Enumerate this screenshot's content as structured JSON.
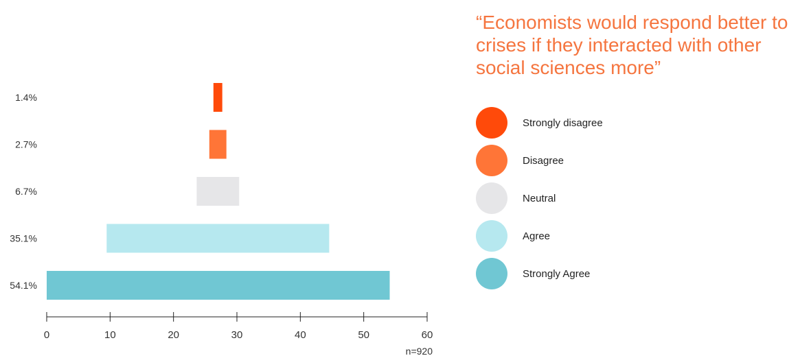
{
  "chart_data": {
    "type": "bar",
    "orientation": "horizontal",
    "layout": "centered",
    "title": "“Economists would respond better to crises if they interacted with other social sciences more”",
    "categories": [
      "Strongly disagree",
      "Disagree",
      "Neutral",
      "Agree",
      "Strongly Agree"
    ],
    "values": [
      1.4,
      2.7,
      6.7,
      35.1,
      54.1
    ],
    "value_labels": [
      "1.4%",
      "2.7%",
      "6.7%",
      "35.1%",
      "54.1%"
    ],
    "colors": [
      "#ff4a0a",
      "#ff7537",
      "#e6e6e8",
      "#b6e8ef",
      "#70c7d3"
    ],
    "xlim": [
      0,
      60
    ],
    "xticks": [
      "0",
      "10",
      "20",
      "30",
      "40",
      "50",
      "60"
    ],
    "grid": false,
    "legend_position": "right",
    "note": "n=920"
  }
}
